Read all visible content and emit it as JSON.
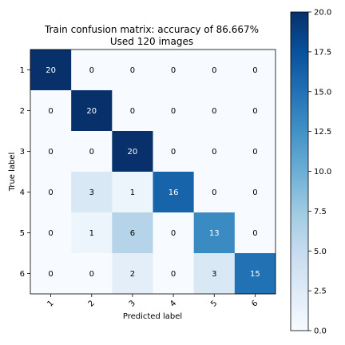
{
  "chart_data": {
    "type": "heatmap",
    "title_line1": "Train confusion matrix: accuracy of 86.667%",
    "title_line2": "Used 120 images",
    "xlabel": "Predicted label",
    "ylabel": "True label",
    "x_tick_labels": [
      "1",
      "2",
      "3",
      "4",
      "5",
      "6"
    ],
    "y_tick_labels": [
      "1",
      "2",
      "3",
      "4",
      "5",
      "6"
    ],
    "matrix": [
      [
        20,
        0,
        0,
        0,
        0,
        0
      ],
      [
        0,
        20,
        0,
        0,
        0,
        0
      ],
      [
        0,
        0,
        20,
        0,
        0,
        0
      ],
      [
        0,
        3,
        1,
        16,
        0,
        0
      ],
      [
        0,
        1,
        6,
        0,
        13,
        0
      ],
      [
        0,
        0,
        2,
        0,
        3,
        15
      ]
    ],
    "colormap": "Blues",
    "colormap_low": "#f7fbff",
    "colormap_high": "#08306b",
    "vmin": 0,
    "vmax": 20,
    "colorbar_ticks": [
      "0.0",
      "2.5",
      "5.0",
      "7.5",
      "10.0",
      "12.5",
      "15.0",
      "17.5",
      "20.0"
    ]
  }
}
